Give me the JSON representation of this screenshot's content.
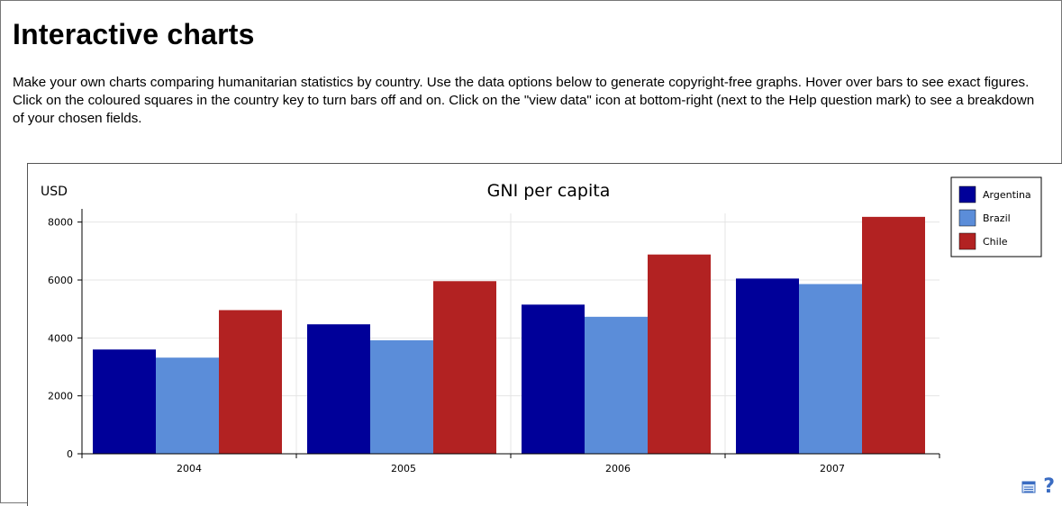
{
  "page": {
    "title": "Interactive charts",
    "intro": "Make your own charts comparing humanitarian statistics by country. Use the data options below to generate copyright-free graphs. Hover over bars to see exact figures. Click on the coloured squares in the country key to turn bars off and on. Click on the \"view data\" icon at bottom-right (next to the Help question mark) to see a breakdown of your chosen fields."
  },
  "chart_data": {
    "type": "bar",
    "title": "GNI per capita",
    "ylabel": "USD",
    "xlabel": "",
    "categories": [
      "2004",
      "2005",
      "2006",
      "2007"
    ],
    "series": [
      {
        "name": "Argentina",
        "color": "#000099",
        "values": [
          3600,
          4470,
          5150,
          6050
        ]
      },
      {
        "name": "Brazil",
        "color": "#5b8dd9",
        "values": [
          3320,
          3920,
          4730,
          5860
        ]
      },
      {
        "name": "Chile",
        "color": "#b22222",
        "values": [
          4960,
          5960,
          6880,
          8180
        ]
      }
    ],
    "ylim": [
      0,
      8000
    ],
    "yticks": [
      "0",
      "2000",
      "4000",
      "6000",
      "8000"
    ],
    "grid": true,
    "legend_position": "top-right"
  },
  "tools": {
    "view_data_icon": "view-data-icon",
    "help_label": "?"
  }
}
